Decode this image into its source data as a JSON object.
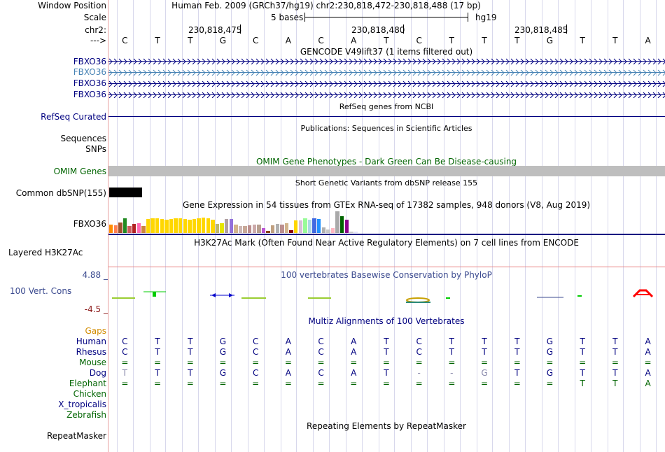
{
  "labels": {
    "window_position": "Window Position",
    "scale": "Scale",
    "chrom": "chr2:",
    "strand": "--->",
    "genes": [
      "FBXO36",
      "FBXO36",
      "FBXO36",
      "FBXO36"
    ],
    "refseq": "RefSeq Curated",
    "sequences": "Sequences",
    "snps": "SNPs",
    "omim": "OMIM Genes",
    "dbsnp": "Common dbSNP(155)",
    "gtex": "FBXO36",
    "h3k27ac": "Layered H3K27Ac",
    "phylop_max": "4.88 _",
    "phylop_name": "100 Vert. Cons",
    "phylop_min": "-4.5 _",
    "gaps": "Gaps",
    "species": [
      "Human",
      "Rhesus",
      "Mouse",
      "Dog",
      "Elephant",
      "Chicken",
      "X_tropicalis",
      "Zebrafish"
    ],
    "repeatmasker": "RepeatMasker"
  },
  "header": {
    "window_position": "Human Feb. 2009 (GRCh37/hg19)   chr2:230,818,472-230,818,488 (17 bp)",
    "scale_text": "5 bases",
    "scale_assembly": "hg19",
    "coords": [
      "230,818,475",
      "230,818,480",
      "230,818,485"
    ]
  },
  "sequence": [
    "C",
    "T",
    "T",
    "G",
    "C",
    "A",
    "C",
    "A",
    "T",
    "C",
    "T",
    "T",
    "T",
    "G",
    "T",
    "T",
    "A"
  ],
  "tracks": {
    "gencode_title": "GENCODE V49lift37 (1 items filtered out)",
    "refseq_title": "RefSeq genes from NCBI",
    "publications_title": "Publications: Sequences in Scientific Articles",
    "omim_title": "OMIM Gene Phenotypes - Dark Green Can Be Disease-causing",
    "dbsnp_title": "Short Genetic Variants from dbSNP release 155",
    "gtex_title": "Gene Expression in 54 tissues from GTEx RNA-seq of 17382 samples, 948 donors (V8, Aug 2019)",
    "h3k27ac_title": "H3K27Ac Mark (Often Found Near Active Regulatory Elements) on 7 cell lines from ENCODE",
    "phylop_title": "100 vertebrates Basewise Conservation by PhyloP",
    "multiz_title": "Multiz Alignments of 100 Vertebrates",
    "repeatmasker_title": "Repeating Elements by RepeatMasker"
  },
  "alignment": {
    "Human": [
      "C",
      "T",
      "T",
      "G",
      "C",
      "A",
      "C",
      "A",
      "T",
      "C",
      "T",
      "T",
      "T",
      "G",
      "T",
      "T",
      "A"
    ],
    "Rhesus": [
      "C",
      "T",
      "T",
      "G",
      "C",
      "A",
      "C",
      "A",
      "T",
      "C",
      "T",
      "T",
      "T",
      "G",
      "T",
      "T",
      "A"
    ],
    "Mouse": [
      "=",
      "=",
      "=",
      "=",
      "=",
      "=",
      "=",
      "=",
      "=",
      "=",
      "=",
      "=",
      "=",
      "=",
      "=",
      "=",
      "="
    ],
    "Dog": [
      "T",
      "T",
      "T",
      "G",
      "C",
      "A",
      "C",
      "A",
      "T",
      "-",
      "-",
      "G",
      "T",
      "G",
      "T",
      "T",
      "A"
    ],
    "Elephant": [
      "=",
      "=",
      "=",
      "=",
      "=",
      "=",
      "=",
      "=",
      "=",
      "=",
      "=",
      "=",
      "=",
      "=",
      "T",
      "T",
      "A"
    ]
  },
  "colors": {
    "label_blue": "#000080",
    "label_green": "#006400",
    "gencode_alt": "#4682b4",
    "omim_gray": "#bebebe",
    "phylop_blue": "#3b4a8f",
    "phylop_red": "#8b1a1a",
    "gaps_orange": "#d28c00",
    "gtex_bars": [
      "#ff8c00",
      "#ff7f50",
      "#a0522d",
      "#228b22",
      "#cd5c5c",
      "#b22222",
      "#ff69b4",
      "#cd853f",
      "#ffd700",
      "#ffd700",
      "#ffd700",
      "#ffd700",
      "#ffd700",
      "#ffd700",
      "#ffd700",
      "#ffd700",
      "#ffd700",
      "#ffd700",
      "#ffd700",
      "#ffd700",
      "#ffd700",
      "#ffd700",
      "#ffd700",
      "#bdb76b",
      "#e6e600",
      "#b0a0a0",
      "#9370db",
      "#d2b48c",
      "#cdb7b5",
      "#c8a898",
      "#bc8f8f",
      "#ccaaaa",
      "#b8a090",
      "#ba55d3",
      "#8b4513",
      "#c0a080",
      "#b0b0b0",
      "#bc8f8f",
      "#d2b48c",
      "#8b0000",
      "#ffd700",
      "#d8bfd8",
      "#98fb98",
      "#add8e6",
      "#4169e1",
      "#1e90ff",
      "#b0b0b0",
      "#c8c8c8",
      "#ffb6c1",
      "#a9a9a9",
      "#006400",
      "#8b008b",
      "#cdcdcd",
      "#e6e6fa"
    ],
    "gtex_values": [
      0.55,
      0.5,
      0.7,
      0.95,
      0.45,
      0.6,
      0.65,
      0.45,
      0.9,
      0.95,
      0.95,
      0.9,
      0.85,
      0.9,
      0.95,
      0.95,
      0.9,
      0.85,
      0.9,
      0.95,
      1.0,
      0.95,
      0.85,
      0.6,
      0.65,
      0.9,
      0.9,
      0.55,
      0.45,
      0.45,
      0.5,
      0.55,
      0.55,
      0.3,
      0.15,
      0.5,
      0.6,
      0.55,
      0.65,
      0.2,
      0.8,
      0.8,
      0.95,
      0.85,
      0.95,
      0.9,
      0.35,
      0.25,
      0.3,
      1.4,
      1.1,
      0.85,
      0.1,
      0.1
    ]
  }
}
